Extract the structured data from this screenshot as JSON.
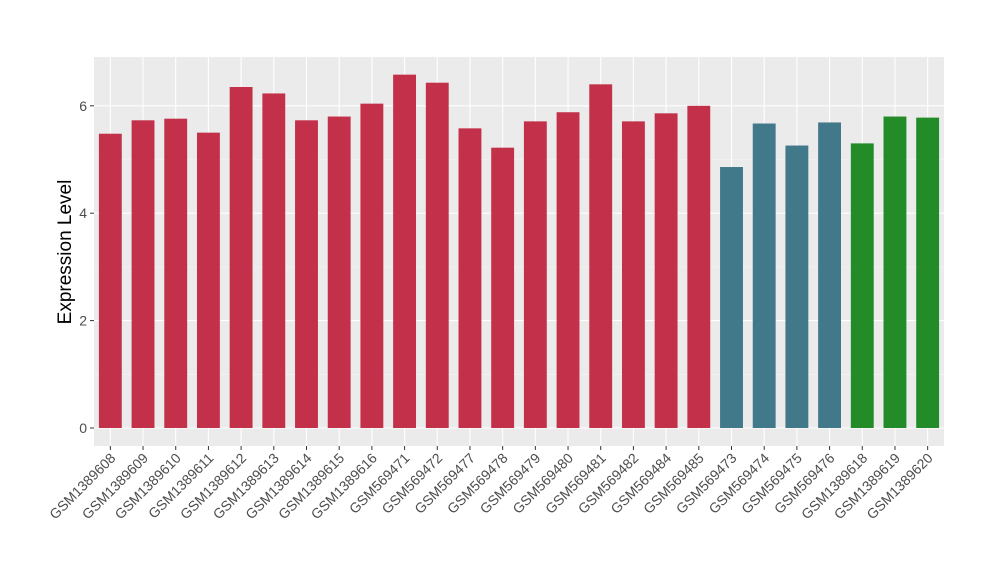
{
  "chart_data": {
    "type": "bar",
    "title": "",
    "xlabel": "",
    "ylabel": "Expression Level",
    "ylim": [
      0,
      6.85
    ],
    "y_ticks": [
      0,
      2,
      4,
      6
    ],
    "grid": true,
    "legend": "none",
    "categories": [
      "GSM1389608",
      "GSM1389609",
      "GSM1389610",
      "GSM1389611",
      "GSM1389612",
      "GSM1389613",
      "GSM1389614",
      "GSM1389615",
      "GSM1389616",
      "GSM569471",
      "GSM569472",
      "GSM569477",
      "GSM569478",
      "GSM569479",
      "GSM569480",
      "GSM569481",
      "GSM569482",
      "GSM569484",
      "GSM569485",
      "GSM569473",
      "GSM569474",
      "GSM569475",
      "GSM569476",
      "GSM1389618",
      "GSM1389619",
      "GSM1389620"
    ],
    "values": [
      5.48,
      5.73,
      5.76,
      5.5,
      6.35,
      6.23,
      5.73,
      5.8,
      6.04,
      6.58,
      6.43,
      5.58,
      5.22,
      5.71,
      5.88,
      6.4,
      5.71,
      5.86,
      6.0,
      4.86,
      5.67,
      5.26,
      5.69,
      5.3,
      5.8,
      5.78
    ],
    "bar_colors": [
      "#c3304a",
      "#c3304a",
      "#c3304a",
      "#c3304a",
      "#c3304a",
      "#c3304a",
      "#c3304a",
      "#c3304a",
      "#c3304a",
      "#c3304a",
      "#c3304a",
      "#c3304a",
      "#c3304a",
      "#c3304a",
      "#c3304a",
      "#c3304a",
      "#c3304a",
      "#c3304a",
      "#c3304a",
      "#41788a",
      "#41788a",
      "#41788a",
      "#41788a",
      "#238b27",
      "#238b27",
      "#238b27"
    ]
  },
  "colors": {
    "panel_background": "#ebebeb",
    "grid_major": "#ffffff",
    "grid_minor": "#f5f5f5",
    "axis_text": "#4d4d4d",
    "axis_title": "#000000"
  }
}
